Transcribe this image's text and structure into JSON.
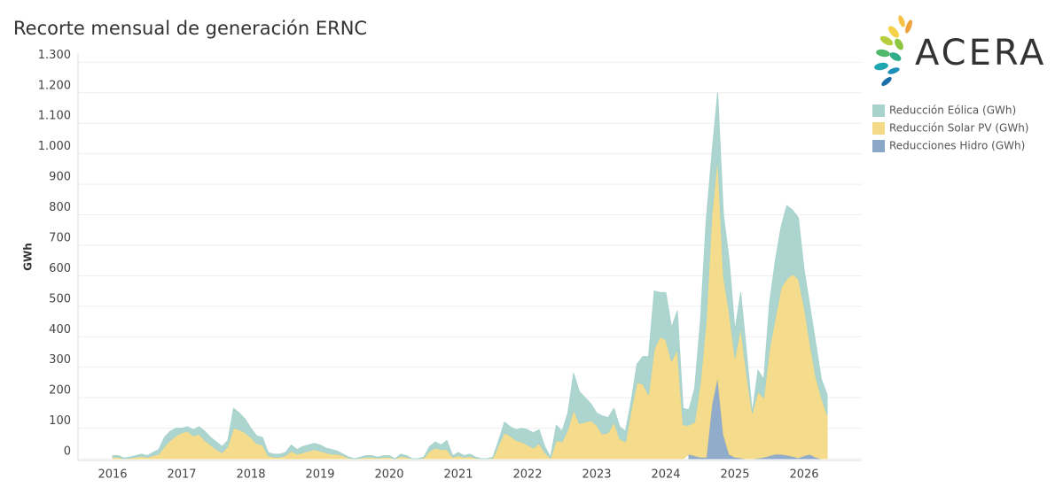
{
  "chart_data": {
    "type": "stacked-area",
    "title": "Recorte mensual de generación ERNC",
    "logo": "ACERA",
    "y_label": "GWh",
    "categories": [
      "2016",
      null,
      null,
      null,
      null,
      null,
      null,
      null,
      null,
      null,
      null,
      null,
      "2017",
      null,
      null,
      null,
      null,
      null,
      null,
      null,
      null,
      null,
      null,
      null,
      "2018",
      null,
      null,
      null,
      null,
      null,
      null,
      null,
      null,
      null,
      null,
      null,
      "2019",
      null,
      null,
      null,
      null,
      null,
      null,
      null,
      null,
      null,
      null,
      null,
      "2020",
      null,
      null,
      null,
      null,
      null,
      null,
      null,
      null,
      null,
      null,
      null,
      "2021",
      null,
      null,
      null,
      null,
      null,
      null,
      null,
      null,
      null,
      null,
      null,
      "2022",
      null,
      null,
      null,
      null,
      null,
      null,
      null,
      null,
      null,
      null,
      null,
      "2023",
      null,
      null,
      null,
      null,
      null,
      null,
      null,
      null,
      null,
      null,
      null,
      "2024",
      null,
      null,
      null,
      null,
      null,
      null,
      null,
      null,
      null,
      null,
      null,
      "2025",
      null,
      null,
      null,
      null,
      null,
      null,
      null,
      null,
      null,
      null,
      null,
      "2026",
      null,
      null,
      null,
      null
    ],
    "series": [
      {
        "name": "Reducción Eólica (GWh)",
        "color": "#a8d3cd",
        "values": [
          5,
          5,
          2,
          3,
          5,
          7,
          5,
          10,
          15,
          30,
          30,
          25,
          15,
          15,
          20,
          25,
          30,
          25,
          25,
          20,
          20,
          65,
          55,
          45,
          30,
          25,
          25,
          10,
          10,
          10,
          10,
          20,
          15,
          20,
          20,
          20,
          20,
          15,
          15,
          10,
          5,
          3,
          0,
          3,
          5,
          5,
          3,
          5,
          5,
          0,
          7,
          5,
          0,
          0,
          3,
          15,
          20,
          15,
          30,
          5,
          10,
          5,
          7,
          3,
          0,
          0,
          3,
          15,
          35,
          30,
          35,
          45,
          50,
          50,
          45,
          20,
          3,
          50,
          35,
          55,
          120,
          105,
          80,
          55,
          40,
          60,
          50,
          45,
          40,
          35,
          30,
          60,
          90,
          125,
          190,
          145,
          155,
          110,
          125,
          55,
          50,
          110,
          200,
          330,
          200,
          210,
          200,
          170,
          90,
          115,
          70,
          0,
          70,
          60,
          150,
          190,
          200,
          240,
          210,
          200,
          120,
          120,
          110,
          60,
          65
        ]
      },
      {
        "name": "Reducción Solar PV (GWh)",
        "color": "#f3da86",
        "values": [
          5,
          5,
          0,
          2,
          5,
          8,
          5,
          10,
          15,
          40,
          60,
          75,
          85,
          90,
          75,
          80,
          60,
          45,
          30,
          20,
          40,
          100,
          95,
          85,
          70,
          50,
          45,
          10,
          5,
          5,
          10,
          25,
          15,
          20,
          25,
          30,
          25,
          20,
          15,
          15,
          10,
          2,
          0,
          2,
          5,
          5,
          2,
          5,
          5,
          0,
          8,
          5,
          0,
          0,
          2,
          25,
          35,
          30,
          30,
          5,
          10,
          5,
          8,
          2,
          0,
          0,
          2,
          45,
          85,
          75,
          60,
          55,
          45,
          35,
          50,
          20,
          2,
          60,
          55,
          95,
          160,
          115,
          120,
          125,
          110,
          80,
          85,
          120,
          65,
          55,
          160,
          250,
          245,
          210,
          360,
          400,
          390,
          320,
          360,
          110,
          95,
          110,
          245,
          445,
          620,
          720,
          520,
          465,
          325,
          427,
          280,
          150,
          218,
          195,
          350,
          445,
          545,
          578,
          597,
          587,
          490,
          365,
          265,
          200,
          145
        ]
      },
      {
        "name": "Reducciones Hidro (GWh)",
        "color": "#8ba7c7",
        "values": [
          null,
          null,
          null,
          null,
          null,
          null,
          null,
          null,
          null,
          null,
          null,
          null,
          null,
          null,
          null,
          null,
          null,
          null,
          null,
          null,
          null,
          null,
          null,
          null,
          null,
          null,
          null,
          null,
          null,
          null,
          null,
          null,
          null,
          null,
          null,
          null,
          null,
          null,
          null,
          null,
          null,
          null,
          null,
          null,
          null,
          null,
          null,
          null,
          null,
          null,
          null,
          null,
          null,
          null,
          null,
          null,
          null,
          null,
          null,
          null,
          null,
          null,
          null,
          null,
          null,
          null,
          null,
          null,
          null,
          null,
          null,
          null,
          null,
          null,
          null,
          null,
          null,
          null,
          null,
          null,
          null,
          null,
          null,
          null,
          null,
          null,
          null,
          null,
          null,
          null,
          null,
          null,
          null,
          null,
          null,
          null,
          null,
          null,
          null,
          null,
          15,
          10,
          5,
          5,
          180,
          270,
          80,
          15,
          5,
          3,
          0,
          0,
          2,
          5,
          10,
          15,
          15,
          12,
          8,
          3,
          10,
          15,
          5,
          0,
          0
        ]
      }
    ],
    "ylim": [
      0,
      1330
    ],
    "yticks": [
      0,
      100,
      200,
      300,
      400,
      500,
      600,
      700,
      800,
      900,
      {
        "value": 1000,
        "label": "1.000"
      },
      {
        "value": 1100,
        "label": "1.100"
      },
      {
        "value": 1200,
        "label": "1.200"
      },
      {
        "value": 1300,
        "label": "1.300"
      }
    ],
    "grid": true,
    "legend": "right"
  }
}
